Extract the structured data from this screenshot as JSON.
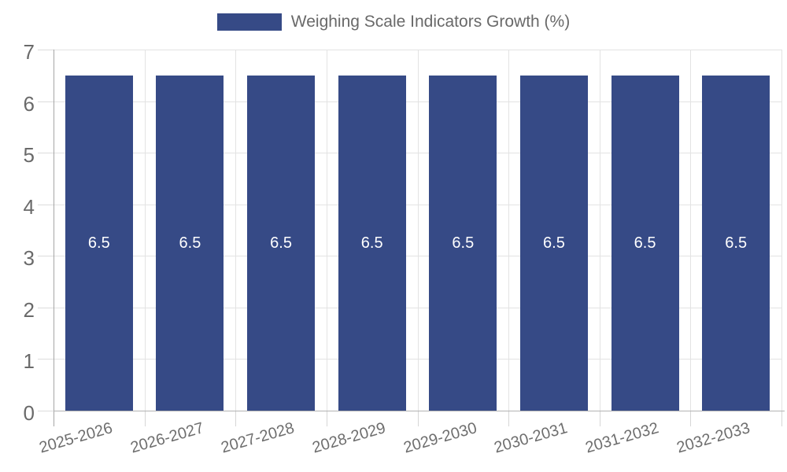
{
  "legend": {
    "label": "Weighing Scale Indicators Growth (%)",
    "swatch_color": "#364A86"
  },
  "chart_data": {
    "type": "bar",
    "title": "Weighing Scale Indicators Growth (%)",
    "categories": [
      "2025-2026",
      "2026-2027",
      "2027-2028",
      "2028-2029",
      "2029-2030",
      "2030-2031",
      "2031-2032",
      "2032-2033"
    ],
    "values": [
      6.5,
      6.5,
      6.5,
      6.5,
      6.5,
      6.5,
      6.5,
      6.5
    ],
    "data_labels": [
      "6.5",
      "6.5",
      "6.5",
      "6.5",
      "6.5",
      "6.5",
      "6.5",
      "6.5"
    ],
    "xlabel": "",
    "ylabel": "",
    "ylim": [
      0,
      7
    ],
    "yticks": [
      0,
      1,
      2,
      3,
      4,
      5,
      6,
      7
    ],
    "grid": true,
    "legend_position": "top",
    "bar_color": "#364A86",
    "bar_label_color": "#ffffff",
    "tick_label_color": "#6a6a6a"
  }
}
